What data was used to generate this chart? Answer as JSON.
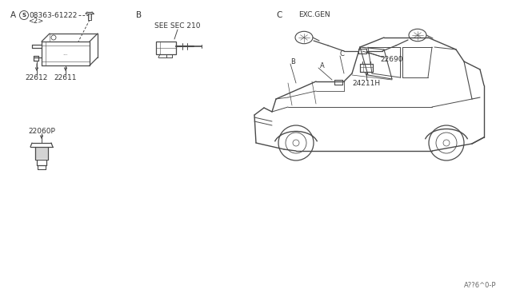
{
  "bg_color": "#ffffff",
  "line_color": "#4a4a4a",
  "text_color": "#333333",
  "label_A": "A",
  "label_B": "B",
  "label_C": "C  EXC.GEN",
  "part_screw": "08363-61222",
  "part_screw_qty": "<2>",
  "part_22611": "22611",
  "part_22612": "22612",
  "part_seesec": "SEE SEC 210",
  "part_22690": "22690",
  "part_24211H": "24211H",
  "part_22060P": "22060P",
  "footer": "A??6^0-P"
}
